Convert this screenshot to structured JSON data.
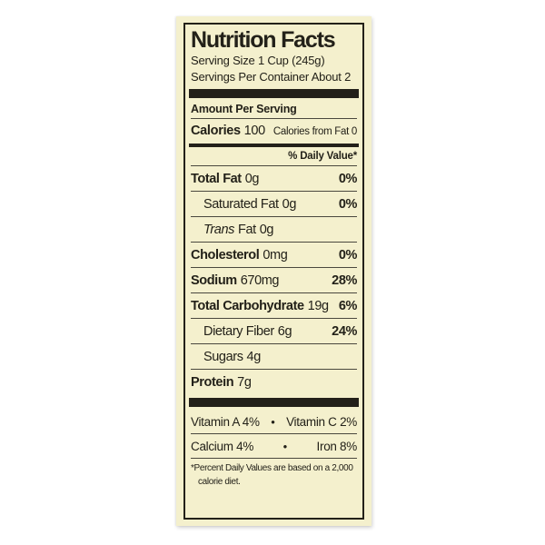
{
  "colors": {
    "page_bg": "#ffffff",
    "label_bg": "#f4f0cd",
    "ink": "#232119",
    "bar": "#232019",
    "divider": "#4a483e"
  },
  "header": {
    "title": "Nutrition Facts",
    "serving_size": "Serving Size 1 Cup (245g)",
    "servings_per_container": "Servings Per Container About 2"
  },
  "amount_per_serving": "Amount Per Serving",
  "calories": {
    "label": "Calories",
    "value": "100",
    "from_fat": "Calories from Fat 0"
  },
  "daily_value_header": "% Daily Value*",
  "nutrients": [
    {
      "name": "Total Fat",
      "amount": "0g",
      "dv": "0%"
    },
    {
      "name": "Saturated Fat",
      "amount": "0g",
      "dv": "0%"
    },
    {
      "name_italic": "Trans",
      "name": "Fat",
      "amount": "0g",
      "dv": ""
    },
    {
      "name": "Cholesterol",
      "amount": "0mg",
      "dv": "0%"
    },
    {
      "name": "Sodium",
      "amount": "670mg",
      "dv": "28%"
    },
    {
      "name": "Total Carbohydrate",
      "amount": "19g",
      "dv": "6%"
    },
    {
      "name": "Dietary Fiber",
      "amount": "6g",
      "dv": "24%"
    },
    {
      "name": "Sugars",
      "amount": "4g",
      "dv": ""
    },
    {
      "name": "Protein",
      "amount": "7g",
      "dv": ""
    }
  ],
  "vitamin_bullet": "•",
  "vitamins": [
    {
      "left": "Vitamin A 4%",
      "right": "Vitamin C 2%"
    },
    {
      "left": "Calcium 4%",
      "right": "Iron 8%"
    }
  ],
  "footnote_lines": {
    "line1": "*Percent Daily Values are based on a 2,000",
    "line2": "calorie diet."
  }
}
